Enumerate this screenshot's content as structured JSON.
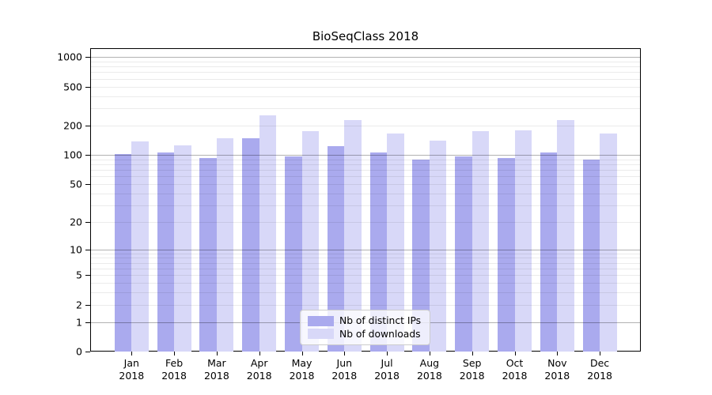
{
  "title": "BioSeqClass 2018",
  "chart_data": {
    "type": "bar",
    "title": "BioSeqClass 2018",
    "categories": [
      "Jan 2018",
      "Feb 2018",
      "Mar 2018",
      "Apr 2018",
      "May 2018",
      "Jun 2018",
      "Jul 2018",
      "Aug 2018",
      "Sep 2018",
      "Oct 2018",
      "Nov 2018",
      "Dec 2018"
    ],
    "x_tick_month_line": [
      "Jan",
      "Feb",
      "Mar",
      "Apr",
      "May",
      "Jun",
      "Jul",
      "Aug",
      "Sep",
      "Oct",
      "Nov",
      "Dec"
    ],
    "x_tick_year_line": "2018",
    "series": [
      {
        "name": "Nb of distinct IPs",
        "color": "#aaaaee",
        "values": [
          102,
          106,
          93,
          147,
          97,
          123,
          106,
          89,
          96,
          93,
          106,
          89
        ]
      },
      {
        "name": "Nb of downloads",
        "color": "#d8d8f8",
        "values": [
          136,
          126,
          149,
          252,
          175,
          227,
          166,
          141,
          175,
          177,
          225,
          164
        ]
      }
    ],
    "y_ticks": [
      0,
      1,
      2,
      5,
      10,
      20,
      50,
      100,
      200,
      500,
      1000
    ],
    "y_major_gridlines": [
      1,
      10,
      100,
      1000
    ],
    "y_minor_gridlines": [
      2,
      3,
      4,
      5,
      6,
      7,
      8,
      9,
      20,
      30,
      40,
      50,
      60,
      70,
      80,
      90,
      200,
      300,
      400,
      500,
      600,
      700,
      800,
      900
    ],
    "y_scale": "log10(1+x)",
    "ylim": [
      0,
      1230
    ],
    "xlabel": "",
    "ylabel": "",
    "grid": "horizontal, major and minor, drawn over bars",
    "legend": {
      "position": "inside-bottom-center",
      "entries": [
        "Nb of distinct IPs",
        "Nb of downloads"
      ]
    }
  },
  "colors": {
    "distinct_ips_bar": "#aaaaee",
    "downloads_bar": "#d8d8f8",
    "major_grid": "#b3b3b3",
    "minor_grid": "#e8e8e8",
    "axis": "#000000",
    "background": "#ffffff",
    "legend_border": "#cccccc"
  }
}
